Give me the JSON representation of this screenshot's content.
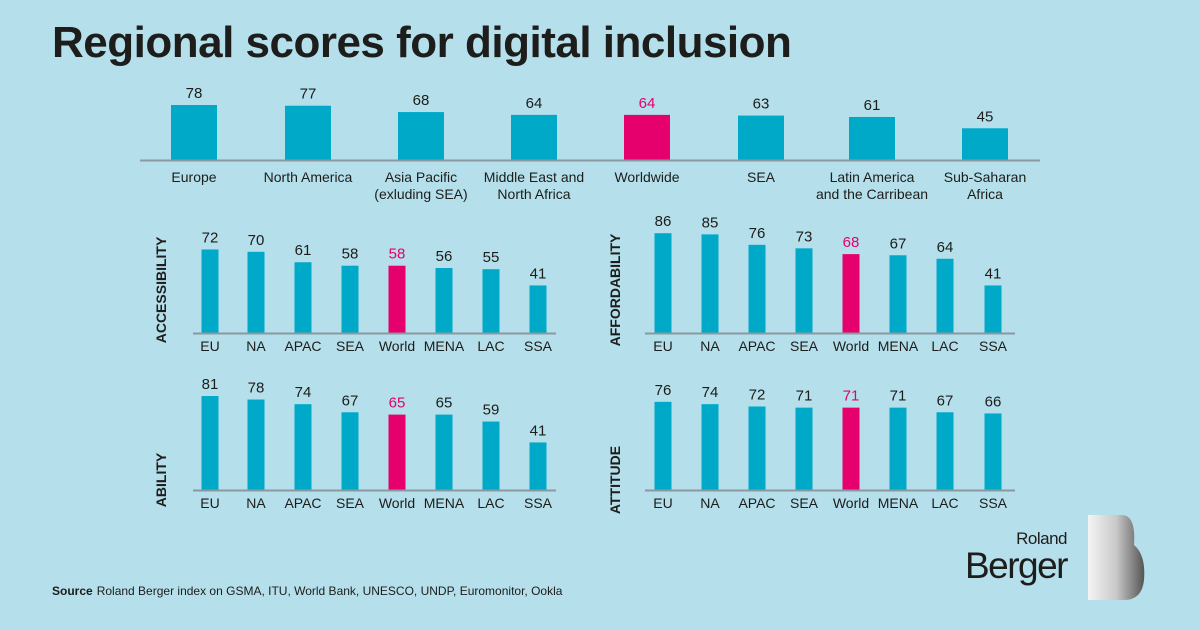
{
  "title": "Regional scores for digital inclusion",
  "colors": {
    "background": "#b4dfeb",
    "bar": "#00a9c8",
    "highlight": "#e5006d",
    "axis": "#8a9aa0"
  },
  "chart_data": [
    {
      "type": "bar",
      "title": "",
      "categories": [
        "Europe",
        "North America",
        "Asia Pacific\n(exluding SEA)",
        "Middle East and\nNorth Africa",
        "Worldwide",
        "SEA",
        "Latin America\nand the Carribean",
        "Sub-Saharan\nAfrica"
      ],
      "values": [
        78,
        77,
        68,
        64,
        64,
        63,
        61,
        45
      ],
      "highlight_index": 4,
      "ylim": [
        0,
        100
      ],
      "grid": false
    },
    {
      "type": "bar",
      "ylabel": "ACCESSIBILITY",
      "categories": [
        "EU",
        "NA",
        "APAC",
        "SEA",
        "World",
        "MENA",
        "LAC",
        "SSA"
      ],
      "values": [
        72,
        70,
        61,
        58,
        58,
        56,
        55,
        41
      ],
      "highlight_index": 4,
      "ylim": [
        0,
        100
      ],
      "grid": false
    },
    {
      "type": "bar",
      "ylabel": "AFFORDABILITY",
      "categories": [
        "EU",
        "NA",
        "APAC",
        "SEA",
        "World",
        "MENA",
        "LAC",
        "SSA"
      ],
      "values": [
        86,
        85,
        76,
        73,
        68,
        67,
        64,
        41
      ],
      "highlight_index": 4,
      "ylim": [
        0,
        100
      ],
      "grid": false
    },
    {
      "type": "bar",
      "ylabel": "ABILITY",
      "categories": [
        "EU",
        "NA",
        "APAC",
        "SEA",
        "World",
        "MENA",
        "LAC",
        "SSA"
      ],
      "values": [
        81,
        78,
        74,
        67,
        65,
        65,
        59,
        41
      ],
      "highlight_index": 4,
      "ylim": [
        0,
        100
      ],
      "grid": false
    },
    {
      "type": "bar",
      "ylabel": "ATTITUDE",
      "categories": [
        "EU",
        "NA",
        "APAC",
        "SEA",
        "World",
        "MENA",
        "LAC",
        "SSA"
      ],
      "values": [
        76,
        74,
        72,
        71,
        71,
        71,
        67,
        66
      ],
      "highlight_index": 4,
      "ylim": [
        0,
        100
      ],
      "grid": false
    }
  ],
  "source": {
    "label": "Source",
    "text": "Roland Berger index on GSMA, ITU, World Bank, UNESCO, UNDP, Euromonitor, Ookla"
  },
  "logo": {
    "line1": "Roland",
    "line2": "Berger"
  }
}
